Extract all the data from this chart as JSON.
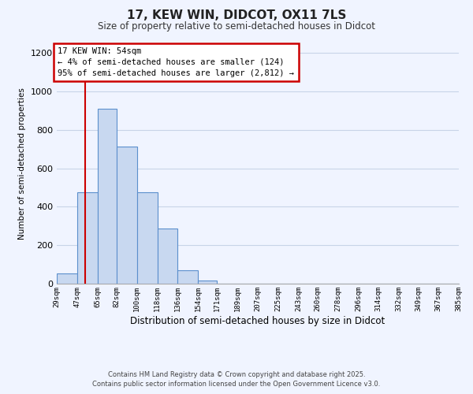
{
  "title": "17, KEW WIN, DIDCOT, OX11 7LS",
  "subtitle": "Size of property relative to semi-detached houses in Didcot",
  "xlabel": "Distribution of semi-detached houses by size in Didcot",
  "ylabel": "Number of semi-detached properties",
  "bin_labels": [
    "29sqm",
    "47sqm",
    "65sqm",
    "82sqm",
    "100sqm",
    "118sqm",
    "136sqm",
    "154sqm",
    "171sqm",
    "189sqm",
    "207sqm",
    "225sqm",
    "243sqm",
    "260sqm",
    "278sqm",
    "296sqm",
    "314sqm",
    "332sqm",
    "349sqm",
    "367sqm",
    "385sqm"
  ],
  "bar_heights": [
    55,
    475,
    910,
    715,
    475,
    285,
    70,
    15,
    0,
    0,
    0,
    0,
    0,
    0,
    0,
    0,
    0,
    0,
    0,
    0
  ],
  "bar_color": "#c8d8f0",
  "bar_edge_color": "#5b8fcc",
  "property_line_x": 54,
  "property_line_color": "#cc0000",
  "ylim": [
    0,
    1250
  ],
  "yticks": [
    0,
    200,
    400,
    600,
    800,
    1000,
    1200
  ],
  "annotation_title": "17 KEW WIN: 54sqm",
  "annotation_line1": "← 4% of semi-detached houses are smaller (124)",
  "annotation_line2": "95% of semi-detached houses are larger (2,812) →",
  "annotation_box_color": "#cc0000",
  "footer_line1": "Contains HM Land Registry data © Crown copyright and database right 2025.",
  "footer_line2": "Contains public sector information licensed under the Open Government Licence v3.0.",
  "background_color": "#f0f4ff",
  "grid_color": "#c8d4e8"
}
